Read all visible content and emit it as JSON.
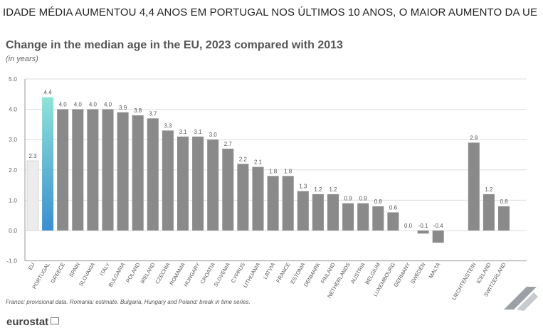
{
  "headline": "IDADE MÉDIA AUMENTOU 4,4 ANOS EM PORTUGAL NOS ÚLTIMOS 10 ANOS, O MAIOR AUMENTO DA UE",
  "chart_data": {
    "type": "bar",
    "title": "Change in the median age in the EU, 2023 compared with 2013",
    "subtitle": "(in years)",
    "ylim": [
      -1.0,
      5.0
    ],
    "yticks": [
      "5.0",
      "4.0",
      "3.0",
      "2.0",
      "1.0",
      "0.0",
      "-1.0"
    ],
    "grid": true,
    "categories": [
      "EU",
      "PORTUGAL",
      "GREECE",
      "SPAIN",
      "SLOVAKIA",
      "ITALY",
      "BULGARIA",
      "POLAND",
      "IRELAND",
      "CZECHIA",
      "ROMANIA",
      "HUNGARY",
      "CROATIA",
      "SLOVENIA",
      "CYPRUS",
      "LITHUANIA",
      "LATVIA",
      "FRANCE",
      "ESTONIA",
      "DENMARK",
      "FINLAND",
      "NETHERLANDS",
      "AUSTRIA",
      "BELGIUM",
      "LUXEMBOURG",
      "GERMANY",
      "SWEDEN",
      "MALTA",
      "LIECHTENSTEIN",
      "ICELAND",
      "SWITZERLAND"
    ],
    "values": [
      2.3,
      4.4,
      4.0,
      4.0,
      4.0,
      4.0,
      3.9,
      3.8,
      3.7,
      3.3,
      3.1,
      3.1,
      3.0,
      2.7,
      2.2,
      2.1,
      1.8,
      1.8,
      1.3,
      1.2,
      1.2,
      0.9,
      0.9,
      0.8,
      0.6,
      0.0,
      -0.1,
      -0.4,
      2.9,
      1.2,
      0.8
    ],
    "labels": [
      "2.3",
      "4.4",
      "4.0",
      "4.0",
      "4.0",
      "4.0",
      "3.9",
      "3.8",
      "3.7",
      "3.3",
      "3.1",
      "3.1",
      "3.0",
      "2.7",
      "2.2",
      "2.1",
      "1.8",
      "1.8",
      "1.3",
      "1.2",
      "1.2",
      "0.9",
      "0.9",
      "0.8",
      "0.6",
      "0.0",
      "-0.1",
      "-0.4",
      "2.9",
      "1.2",
      "0.8"
    ],
    "colors": {
      "eu": "#ececec",
      "portugal_top": "#8fe3d8",
      "portugal_bottom": "#3a8fd0",
      "default": "#8a8a8a",
      "grid": "#dddddd",
      "axis": "#999999",
      "label": "#555555"
    }
  },
  "footnote": "France: provisional data. Romania: estimate. Bulgaria, Hungary and Poland: break in time series.",
  "logo": "eurostat"
}
